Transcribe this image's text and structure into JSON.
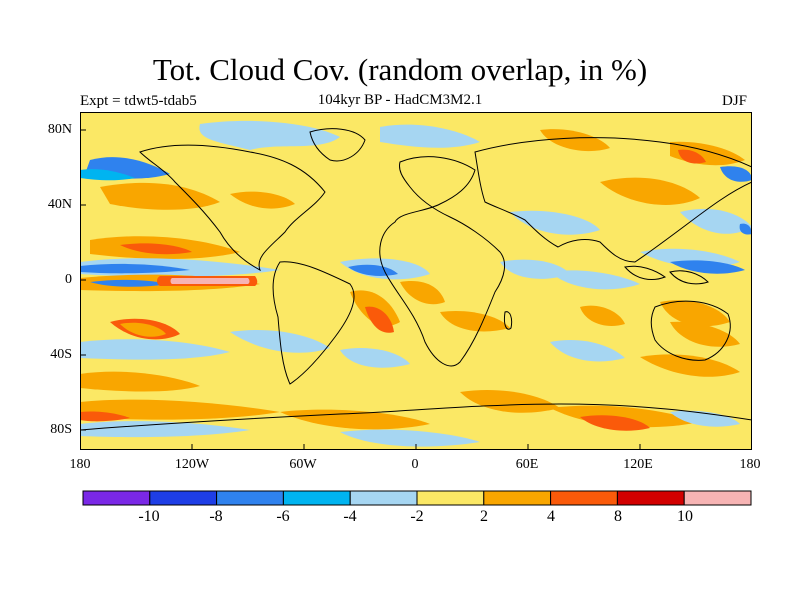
{
  "title": "Tot. Cloud Cov. (random overlap, in %)",
  "subtitle": "104kyr BP - HadCM3M2.1",
  "left_label": "Expt = tdwt5-tdab5",
  "right_label": "DJF",
  "y_axis": {
    "ticks": [
      "80N",
      "40N",
      "0",
      "40S",
      "80S"
    ]
  },
  "x_axis": {
    "ticks": [
      "180",
      "120W",
      "60W",
      "0",
      "60E",
      "120E",
      "180"
    ]
  },
  "colorbar": {
    "colors": [
      "#7a28e6",
      "#1e3ee6",
      "#2f82ee",
      "#00b4f0",
      "#a6d6f2",
      "#fbe865",
      "#f9a600",
      "#fa5a0a",
      "#d20000",
      "#f7b4b4"
    ],
    "labels": [
      "-10",
      "-8",
      "-6",
      "-4",
      "-2",
      "2",
      "4",
      "8",
      "10"
    ]
  },
  "map": {
    "background_color": "#fbe865",
    "land_outline_color": "#000000"
  }
}
